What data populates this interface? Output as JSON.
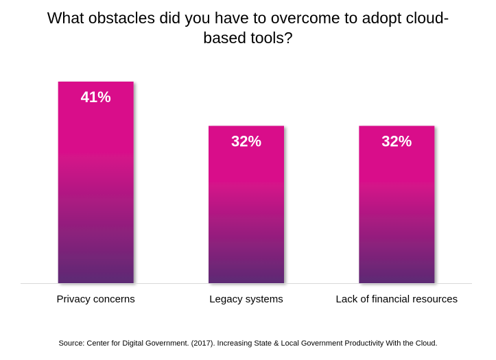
{
  "chart_data": {
    "type": "bar",
    "title": "What obstacles did you have to overcome to adopt cloud-based tools?",
    "categories": [
      "Privacy concerns",
      "Legacy systems",
      "Lack of financial resources"
    ],
    "values": [
      41,
      32,
      32
    ],
    "value_labels": [
      "41%",
      "32%",
      "32%"
    ],
    "xlabel": "",
    "ylabel": "",
    "ylim": [
      0,
      41
    ],
    "grid": false,
    "legend": "none",
    "colors": {
      "bar_top": "#d9118a",
      "bar_bottom": "#5c2a73",
      "axis": "#d9d9d9",
      "value_text": "#ffffff"
    }
  },
  "source": "Source: Center for Digital Government. (2017). Increasing State & Local Government Productivity With the Cloud."
}
